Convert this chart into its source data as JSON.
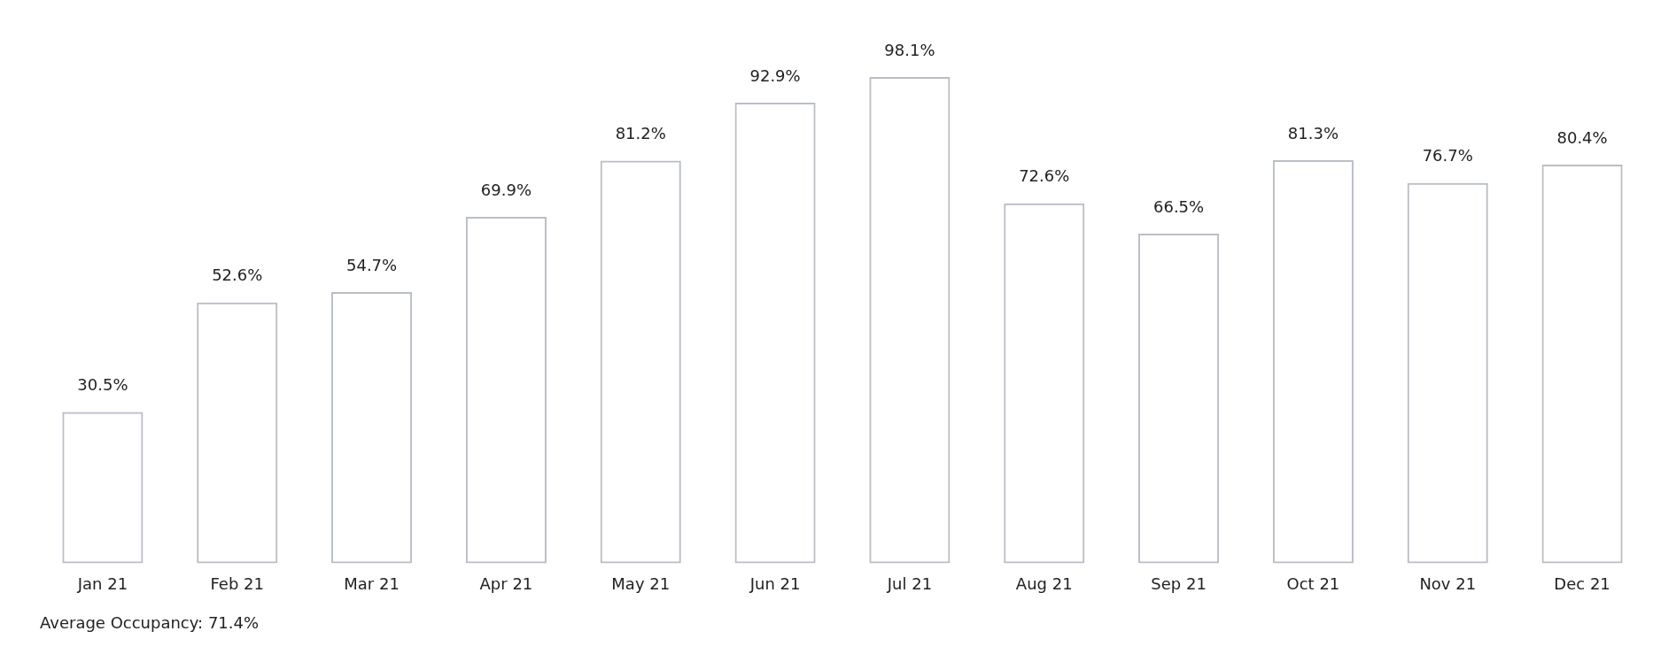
{
  "chart_data": {
    "type": "bar",
    "categories": [
      "Jan 21",
      "Feb 21",
      "Mar 21",
      "Apr 21",
      "May 21",
      "Jun 21",
      "Jul 21",
      "Aug 21",
      "Sep 21",
      "Oct 21",
      "Nov 21",
      "Dec 21"
    ],
    "values": [
      30.5,
      52.6,
      54.7,
      69.9,
      81.2,
      92.9,
      98.1,
      72.6,
      66.5,
      81.3,
      76.7,
      80.4
    ],
    "value_labels": [
      "30.5%",
      "52.6%",
      "54.7%",
      "69.9%",
      "81.2%",
      "92.9%",
      "98.1%",
      "72.6%",
      "66.5%",
      "81.3%",
      "76.7%",
      "80.4%"
    ],
    "color": "#b9bec6",
    "annotations": [
      "Average Occupancy: 71.4%"
    ]
  }
}
